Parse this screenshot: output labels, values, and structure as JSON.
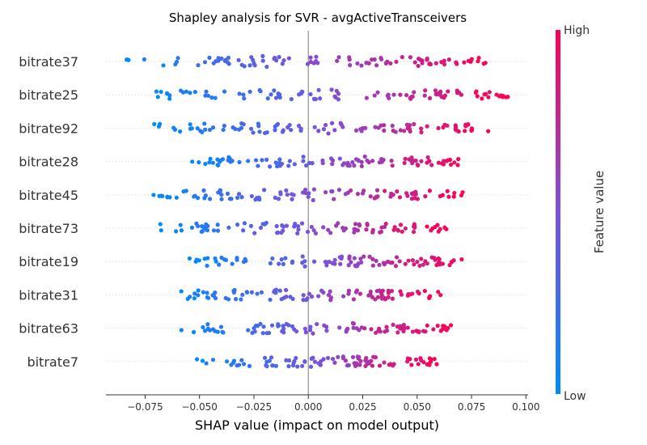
{
  "chart_data": {
    "type": "scatter",
    "subtype": "beeswarm",
    "title": "Shapley analysis for SVR - avgActiveTransceivers",
    "xlabel": "SHAP value (impact on model output)",
    "ylabel": "",
    "xlim": [
      -0.093,
      0.101
    ],
    "xticks": [
      {
        "value": -0.075,
        "label": "−0.075"
      },
      {
        "value": -0.05,
        "label": "−0.050"
      },
      {
        "value": -0.025,
        "label": "−0.025"
      },
      {
        "value": 0.0,
        "label": "0.000"
      },
      {
        "value": 0.025,
        "label": "0.025"
      },
      {
        "value": 0.05,
        "label": "0.050"
      },
      {
        "value": 0.075,
        "label": "0.075"
      },
      {
        "value": 0.1,
        "label": "0.100"
      }
    ],
    "grid": false,
    "zero_line": true,
    "colorbar": {
      "label": "Feature value",
      "high_label": "High",
      "low_label": "Low",
      "low_color": "#008bfb",
      "mid_color": "#7c52d8",
      "high_color": "#ff0052"
    },
    "features": [
      {
        "name": "bitrate37",
        "xmin": -0.085,
        "xmax": 0.082,
        "split": 0.0
      },
      {
        "name": "bitrate25",
        "xmin": -0.071,
        "xmax": 0.092,
        "split": 0.0
      },
      {
        "name": "bitrate92",
        "xmin": -0.071,
        "xmax": 0.084,
        "split": 0.0
      },
      {
        "name": "bitrate28",
        "xmin": -0.054,
        "xmax": 0.072,
        "split": 0.0
      },
      {
        "name": "bitrate45",
        "xmin": -0.072,
        "xmax": 0.071,
        "split": 0.0
      },
      {
        "name": "bitrate73",
        "xmin": -0.069,
        "xmax": 0.064,
        "split": 0.0
      },
      {
        "name": "bitrate19",
        "xmin": -0.055,
        "xmax": 0.073,
        "split": 0.0
      },
      {
        "name": "bitrate31",
        "xmin": -0.06,
        "xmax": 0.061,
        "split": 0.0
      },
      {
        "name": "bitrate63",
        "xmin": -0.06,
        "xmax": 0.066,
        "split": 0.0
      },
      {
        "name": "bitrate7",
        "xmin": -0.052,
        "xmax": 0.06,
        "split": 0.0
      }
    ]
  }
}
